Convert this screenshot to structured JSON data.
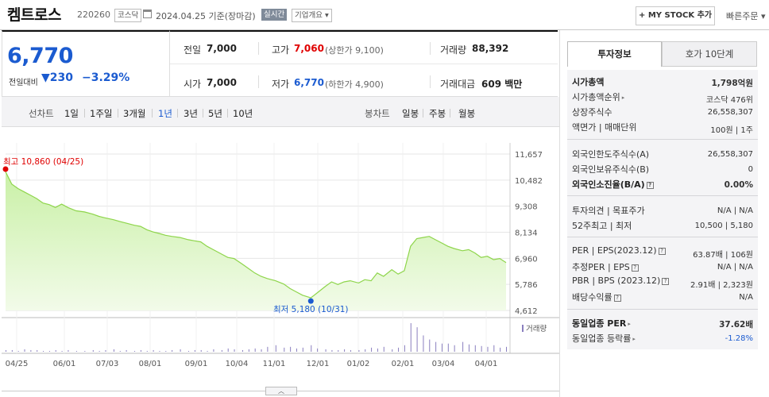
{
  "header": {
    "stock_name": "켐트로스",
    "stock_code": "220260",
    "market": "코스닥",
    "date_text": "2024.04.25  기준(장마감)",
    "realtime": "실시간",
    "company_info": "기업개요 ▾",
    "mystock_label": "+ MY STOCK 추가",
    "quick_order": "빠른주문 ▾"
  },
  "price": {
    "current": "6,770",
    "vs_label": "전일대비",
    "change": "▼230",
    "change_rate": "−3.29%"
  },
  "summary": {
    "prev_label": "전일",
    "prev_value": "7,000",
    "high_label": "고가",
    "high_value": "7,060",
    "high_sub": "(상한가 9,100)",
    "volume_label": "거래량",
    "volume_value": "88,392",
    "open_label": "시가",
    "open_value": "7,000",
    "low_label": "저가",
    "low_value": "6,770",
    "low_sub": "(하한가 4,900)",
    "amount_label": "거래대금",
    "amount_value": "609 백만"
  },
  "chart_tabs": {
    "line_label": "선차트",
    "line_tabs": [
      "1일",
      "1주일",
      "3개월",
      "1년",
      "3년",
      "5년",
      "10년"
    ],
    "active": "1년",
    "candle_label": "봉차트",
    "candle_tabs": [
      "일봉",
      "주봉",
      "월봉"
    ]
  },
  "chart_data": {
    "type": "area",
    "x_tick_labels": [
      "04/25",
      "06/01",
      "07/03",
      "08/01",
      "09/01",
      "10/04",
      "11/01",
      "12/01",
      "01/02",
      "02/01",
      "03/04",
      "04/01"
    ],
    "y_tick_labels": [
      "11,657",
      "10,482",
      "9,308",
      "8,134",
      "6,960",
      "5,786",
      "4,612"
    ],
    "ylim": [
      4612,
      11657
    ],
    "high_annotation": "최고 10,860 (04/25)",
    "low_annotation": "최저 5,180 (10/31)",
    "volume_legend": "거래량",
    "price_x": [
      0,
      3,
      6,
      9,
      12,
      15,
      18,
      21,
      24,
      27,
      30,
      34,
      38,
      42,
      45,
      48,
      52,
      55,
      58,
      62,
      65,
      68,
      71,
      74,
      77,
      80,
      84,
      88,
      91,
      94,
      97,
      100,
      104,
      107,
      110,
      114,
      117,
      120,
      123,
      126,
      130,
      134,
      137,
      140,
      143,
      147,
      150,
      154,
      157,
      160,
      163,
      166,
      170,
      173,
      176,
      179,
      182,
      186,
      189,
      192,
      195,
      198,
      201,
      204,
      207,
      210,
      213,
      216,
      220,
      223,
      226,
      229,
      232,
      235,
      238,
      241
    ],
    "price_y": [
      10860,
      10300,
      10100,
      9950,
      9800,
      9650,
      9450,
      9380,
      9250,
      9400,
      9250,
      9100,
      9050,
      8950,
      8850,
      8780,
      8700,
      8620,
      8550,
      8450,
      8400,
      8250,
      8150,
      8080,
      8000,
      7950,
      7900,
      7800,
      7750,
      7700,
      7500,
      7350,
      7150,
      7000,
      6950,
      6700,
      6500,
      6300,
      6150,
      6050,
      5950,
      5800,
      5600,
      5450,
      5300,
      5180,
      5400,
      5700,
      5900,
      5780,
      5900,
      5950,
      5850,
      6000,
      5950,
      6300,
      6150,
      6450,
      6250,
      6400,
      7500,
      7850,
      7900,
      7950,
      7800,
      7650,
      7500,
      7400,
      7300,
      7350,
      7200,
      7000,
      7050,
      6900,
      6950,
      6770
    ],
    "volume_y": [
      2,
      2,
      1,
      3,
      2,
      2,
      1,
      1,
      2,
      1,
      2,
      1,
      1,
      2,
      1,
      2,
      3,
      1,
      2,
      1,
      2,
      1,
      2,
      1,
      1,
      2,
      3,
      1,
      2,
      2,
      1,
      3,
      2,
      4,
      3,
      2,
      3,
      4,
      3,
      6,
      8,
      5,
      6,
      4,
      5,
      8,
      4,
      3,
      2,
      2,
      3,
      2,
      2,
      3,
      5,
      4,
      6,
      3,
      5,
      8,
      35,
      30,
      20,
      15,
      12,
      10,
      10,
      8,
      12,
      9,
      8,
      7,
      6,
      8,
      5,
      6
    ]
  },
  "right_panel": {
    "tab_invest": "투자정보",
    "tab_quote": "호가 10단계",
    "rows": [
      {
        "label": "시가총액",
        "value": "1,798억원"
      },
      {
        "label": "시가총액순위",
        "value": "코스닥 476위"
      },
      {
        "label": "상장주식수",
        "value": "26,558,307"
      },
      {
        "label": "액면가 | 매매단위",
        "value": "100원 | 1주"
      },
      {
        "label": "외국인한도주식수(A)",
        "value": "26,558,307"
      },
      {
        "label": "외국인보유주식수(B)",
        "value": "0"
      },
      {
        "label": "외국인소진율(B/A)",
        "value": "0.00%"
      },
      {
        "label": "투자의견 | 목표주가",
        "value": "N/A | N/A"
      },
      {
        "label": "52주최고 | 최저",
        "value": "10,500 | 5,180"
      },
      {
        "label": "PER | EPS(2023.12)",
        "value": "63.87배 | 106원"
      },
      {
        "label": "추정PER | EPS",
        "value": "N/A | N/A"
      },
      {
        "label": "PBR | BPS (2023.12)",
        "value": "2.91배 | 2,323원"
      },
      {
        "label": "배당수익률",
        "value": "N/A"
      },
      {
        "label": "동일업종 PER",
        "value": "37.62배"
      },
      {
        "label": "동일업종 등락률",
        "value": "-1.28%"
      }
    ]
  },
  "colors": {
    "down_blue": "#1b5bd0",
    "up_red": "#e00000",
    "chart_line": "#8ed54b",
    "chart_fill_top": "#c9f0a6",
    "chart_fill_bottom": "#f2fbe9",
    "volume_bar": "#8a7fbf"
  },
  "expand_icon": "chevron-up-icon"
}
